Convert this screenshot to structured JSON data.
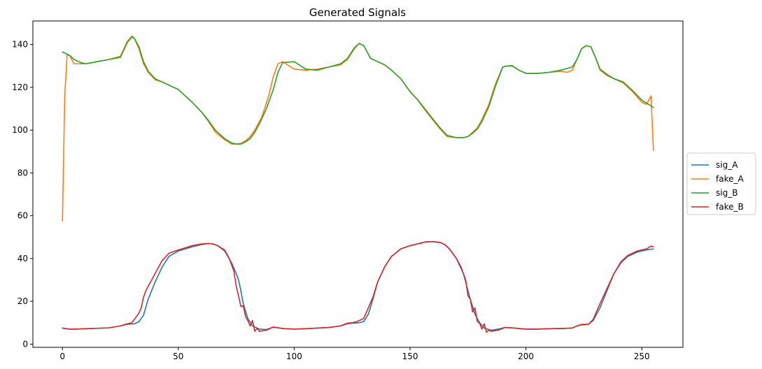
{
  "chart_data": {
    "type": "line",
    "title": "Generated Signals",
    "xlabel": "",
    "ylabel": "",
    "xlim": [
      -12.75,
      267.75
    ],
    "ylim": [
      -1.5,
      151
    ],
    "xticks": [
      0,
      50,
      100,
      150,
      200,
      250
    ],
    "yticks": [
      0,
      20,
      40,
      60,
      80,
      100,
      120,
      140
    ],
    "grid": false,
    "legend_position": "center right, outside axes",
    "series": [
      {
        "name": "sig_A",
        "color": "#1f77b4",
        "x": [
          0,
          3,
          6,
          10,
          15,
          20,
          25,
          28,
          30,
          31,
          33,
          35,
          37,
          40,
          43,
          46,
          50,
          53,
          56,
          60,
          63,
          65,
          67,
          70,
          73,
          75,
          76,
          77,
          78,
          80,
          82,
          85,
          88,
          91,
          95,
          100,
          105,
          110,
          115,
          120,
          123,
          125,
          127,
          128,
          130,
          132,
          134,
          136,
          139,
          142,
          146,
          150,
          153,
          155,
          157,
          160,
          163,
          165,
          167,
          170,
          173,
          175,
          176,
          178,
          180,
          182,
          185,
          188,
          191,
          195,
          200,
          205,
          210,
          215,
          220,
          222,
          224,
          225,
          227,
          229,
          232,
          235,
          238,
          241,
          244,
          248,
          252,
          255
        ],
        "y": [
          7.5,
          7,
          7,
          7.2,
          7.4,
          7.6,
          8.5,
          9.3,
          9.4,
          9.5,
          10.5,
          13.5,
          21,
          29,
          36,
          41,
          43.5,
          44.5,
          45.5,
          46.5,
          47,
          46.8,
          46,
          43.5,
          38,
          33,
          30,
          25,
          19,
          12,
          8.5,
          7,
          6.8,
          8,
          7.3,
          7,
          7.2,
          7.5,
          7.8,
          8.5,
          9.5,
          9.8,
          9.9,
          10,
          10.5,
          14,
          21,
          29,
          36,
          41,
          44.5,
          46,
          46.8,
          47.3,
          47.8,
          47.9,
          47.5,
          46.5,
          44.5,
          40,
          33,
          25,
          21,
          14,
          10,
          7.5,
          6.5,
          7,
          7.8,
          7.5,
          7,
          7,
          7.2,
          7.3,
          7.5,
          8.5,
          9,
          9,
          9.3,
          11,
          17,
          25,
          33,
          38,
          41,
          43,
          44,
          44.5
        ]
      },
      {
        "name": "fake_A",
        "color": "#ff7f0e",
        "x": [
          0,
          1,
          2,
          3,
          5,
          6,
          8,
          10,
          15,
          20,
          25,
          28,
          30,
          31,
          33,
          35,
          37,
          40,
          43,
          46,
          50,
          53,
          56,
          60,
          63,
          66,
          70,
          73,
          75,
          77,
          79,
          81,
          83,
          86,
          89,
          91,
          93,
          95,
          100,
          105,
          110,
          115,
          120,
          123,
          126,
          128,
          130,
          133,
          136,
          139,
          142,
          146,
          150,
          153,
          156,
          160,
          163,
          166,
          170,
          173,
          175,
          177,
          179,
          181,
          184,
          187,
          190,
          192,
          194,
          197,
          200,
          205,
          210,
          215,
          218,
          220,
          222,
          224,
          226,
          228,
          230,
          232,
          235,
          238,
          242,
          246,
          250,
          252,
          254,
          255
        ],
        "y": [
          57.5,
          116,
          135,
          135,
          131,
          131,
          131,
          131,
          132,
          133,
          134.5,
          141.5,
          144,
          143,
          138,
          131,
          127,
          123.5,
          122.5,
          121,
          119,
          116,
          113,
          108.5,
          104,
          99,
          95.5,
          93.5,
          93.5,
          93.8,
          95,
          97,
          100,
          106,
          116,
          125,
          131,
          132,
          128.5,
          128,
          128.5,
          129.5,
          130.5,
          133,
          138,
          140.5,
          139.5,
          133.5,
          132,
          130.5,
          128,
          124,
          118,
          114.5,
          110,
          104.5,
          100.5,
          97,
          96.5,
          96.5,
          97,
          99,
          101,
          105,
          112,
          122,
          129.5,
          130,
          130.2,
          128,
          126.5,
          126.5,
          127,
          127.5,
          127,
          128,
          133,
          138,
          139.5,
          139,
          134,
          128,
          125.5,
          124,
          122,
          118,
          113,
          112,
          116,
          90.5
        ]
      },
      {
        "name": "sig_B",
        "color": "#2ca02c",
        "x": [
          0,
          3,
          5,
          8,
          10,
          15,
          20,
          25,
          28,
          30,
          31,
          33,
          35,
          37,
          40,
          43,
          46,
          50,
          53,
          56,
          60,
          63,
          66,
          70,
          73,
          75,
          77,
          79,
          81,
          83,
          85,
          88,
          91,
          93,
          95,
          100,
          105,
          110,
          115,
          120,
          123,
          126,
          128,
          130,
          133,
          136,
          139,
          142,
          146,
          150,
          153,
          156,
          160,
          163,
          166,
          170,
          173,
          175,
          177,
          179,
          181,
          184,
          187,
          190,
          192,
          194,
          197,
          200,
          205,
          210,
          215,
          220,
          222,
          224,
          226,
          228,
          230,
          232,
          235,
          238,
          242,
          246,
          250,
          253,
          255
        ],
        "y": [
          136.5,
          135,
          133,
          131.5,
          131,
          132,
          133,
          134,
          141,
          143.5,
          143,
          139,
          132,
          127.5,
          124,
          122.5,
          121,
          119,
          116,
          113,
          108.5,
          104.5,
          100,
          96,
          94,
          93.5,
          93.5,
          94.5,
          96,
          99,
          103,
          110,
          119,
          127,
          131.5,
          132,
          128.5,
          128,
          129.5,
          131,
          133.5,
          138.5,
          140.5,
          139.5,
          133.5,
          132,
          130.5,
          128,
          124,
          118,
          114.5,
          110.5,
          105,
          101,
          97.5,
          96.5,
          96.5,
          97,
          98.5,
          100.5,
          104,
          111,
          121,
          129.5,
          130,
          130,
          128,
          126.5,
          126.5,
          127,
          128,
          129.5,
          133,
          138,
          139.5,
          139,
          134,
          128.5,
          126,
          124,
          122.5,
          118.5,
          114,
          112,
          110.5
        ]
      },
      {
        "name": "fake_B",
        "color": "#d62728",
        "x": [
          0,
          3,
          6,
          10,
          15,
          20,
          25,
          28,
          30,
          31,
          32,
          33,
          34,
          35,
          36,
          40,
          43,
          46,
          50,
          53,
          56,
          60,
          63,
          65,
          67,
          70,
          72,
          74,
          75,
          76,
          77,
          78,
          79,
          80,
          81,
          82,
          83,
          84,
          85,
          88,
          91,
          95,
          100,
          105,
          110,
          115,
          120,
          123,
          125,
          127,
          128,
          130,
          132,
          134,
          136,
          139,
          142,
          146,
          150,
          153,
          155,
          157,
          160,
          163,
          165,
          167,
          170,
          172,
          174,
          175,
          176,
          177,
          178,
          179,
          180,
          181,
          182,
          183,
          184,
          185,
          188,
          191,
          195,
          200,
          205,
          210,
          215,
          220,
          222,
          224,
          225,
          227,
          229,
          232,
          235,
          238,
          241,
          244,
          248,
          252,
          254,
          255
        ],
        "y": [
          7.5,
          7,
          7,
          7.2,
          7.4,
          7.6,
          8.5,
          9.5,
          10,
          11.5,
          13,
          14.5,
          17,
          22,
          25,
          33,
          39,
          42.5,
          44,
          45,
          46,
          46.8,
          47,
          46.8,
          46,
          44,
          40,
          34,
          27,
          22.5,
          17.5,
          18,
          13,
          11,
          8.5,
          11,
          6,
          7.5,
          6,
          6.5,
          8,
          7.3,
          7,
          7.2,
          7.5,
          7.8,
          8.5,
          9.8,
          10,
          10.5,
          11,
          12,
          17,
          22,
          29,
          36,
          41,
          44.5,
          46,
          46.8,
          47.3,
          47.8,
          47.9,
          47.5,
          46.5,
          44.5,
          40,
          36,
          30,
          22.5,
          21,
          15,
          17,
          10.5,
          9.8,
          7,
          9.5,
          5.5,
          6.5,
          6,
          6.5,
          7.8,
          7.5,
          7,
          7,
          7.2,
          7.3,
          7.5,
          8.5,
          9.2,
          9.2,
          9.3,
          11.5,
          19,
          26,
          33,
          38.5,
          41.5,
          43.5,
          44.5,
          45.8,
          45.5
        ]
      }
    ]
  }
}
